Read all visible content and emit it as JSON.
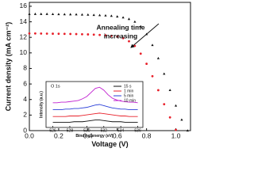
{
  "chart_data": [
    {
      "type": "line",
      "xlabel": "Voltage (V)",
      "ylabel": "Current density (mA cm⁻²)",
      "annotation": [
        "Annealing time",
        "increasing"
      ],
      "x": [
        0,
        0.04,
        0.08,
        0.12,
        0.16,
        0.2,
        0.24,
        0.28,
        0.32,
        0.36,
        0.4,
        0.44,
        0.48,
        0.52,
        0.56,
        0.6,
        0.64,
        0.68,
        0.72,
        0.76,
        0.8,
        0.84,
        0.88,
        0.92,
        0.96,
        1.0,
        1.04,
        1.08
      ],
      "series": [
        {
          "color": "#111111",
          "marker": "triangle",
          "values": [
            15.0,
            15.0,
            15.0,
            15.0,
            14.98,
            14.97,
            14.96,
            14.95,
            14.94,
            14.92,
            14.9,
            14.87,
            14.84,
            14.8,
            14.75,
            14.67,
            14.55,
            14.35,
            14.0,
            13.4,
            12.4,
            11.0,
            9.3,
            7.3,
            5.2,
            3.2,
            1.4,
            0.0
          ]
        },
        {
          "color": "#e8202a",
          "marker": "circle",
          "values": [
            12.5,
            12.5,
            12.49,
            12.48,
            12.47,
            12.46,
            12.45,
            12.44,
            12.42,
            12.4,
            12.38,
            12.35,
            12.31,
            12.26,
            12.2,
            12.1,
            11.9,
            11.5,
            10.9,
            9.9,
            8.6,
            7.0,
            5.2,
            3.4,
            1.7,
            0.1,
            null,
            null
          ]
        }
      ],
      "xlim": [
        0,
        1.1
      ],
      "xticks": [
        {
          "value": 0,
          "label": "0.0"
        },
        {
          "value": 0.2,
          "label": "0.2"
        },
        {
          "value": 0.4,
          "label": "0.4"
        },
        {
          "value": 0.6,
          "label": "0.6"
        },
        {
          "value": 0.8,
          "label": "0.8"
        },
        {
          "value": 1.0,
          "label": "1.0"
        }
      ],
      "ylim": [
        0,
        16.5
      ],
      "yticks": [
        0,
        2,
        4,
        6,
        8,
        10,
        12,
        14,
        16
      ]
    },
    {
      "type": "line",
      "title": "O 1s",
      "xlabel": "Binding energy (eV)",
      "ylabel": "Intensity (a.u.)",
      "x": [
        526,
        526.5,
        527,
        527.5,
        528,
        528.5,
        529,
        529.5,
        530,
        530.5,
        531,
        531.5,
        532,
        532.5,
        533,
        533.5,
        534,
        534.5,
        535,
        535.5,
        536
      ],
      "series": [
        {
          "name": "15 s",
          "color": "#111111",
          "values": [
            2.4,
            2.4,
            2.4,
            2.4,
            2.4,
            2.5,
            2.5,
            2.5,
            2.6,
            2.7,
            2.8,
            2.8,
            2.7,
            2.6,
            2.5,
            2.5,
            2.5,
            2.4,
            2.4,
            2.4,
            2.4
          ]
        },
        {
          "name": "1 min",
          "color": "#e8202a",
          "values": [
            3.4,
            3.4,
            3.4,
            3.4,
            3.5,
            3.5,
            3.5,
            3.6,
            3.7,
            3.8,
            3.9,
            4.0,
            3.9,
            3.8,
            3.7,
            3.6,
            3.5,
            3.5,
            3.4,
            3.4,
            3.4
          ]
        },
        {
          "name": "5 min",
          "color": "#2a3fd8",
          "values": [
            4.6,
            4.6,
            4.6,
            4.7,
            4.7,
            4.8,
            4.8,
            4.9,
            5.0,
            5.2,
            5.4,
            5.5,
            5.3,
            5.1,
            4.9,
            4.8,
            4.7,
            4.7,
            4.6,
            4.6,
            4.6
          ]
        },
        {
          "name": "10 min",
          "color": "#c020d0",
          "values": [
            5.8,
            5.8,
            5.9,
            5.9,
            6.0,
            6.1,
            6.2,
            6.5,
            6.9,
            7.6,
            8.3,
            8.5,
            8.0,
            7.2,
            6.6,
            6.3,
            6.1,
            6.0,
            5.9,
            5.9,
            5.8
          ]
        }
      ],
      "xlim": [
        525.2,
        536.6
      ],
      "xticks": [
        526,
        528,
        530,
        532,
        534,
        536
      ],
      "ylim": [
        1.5,
        9.5
      ]
    }
  ]
}
